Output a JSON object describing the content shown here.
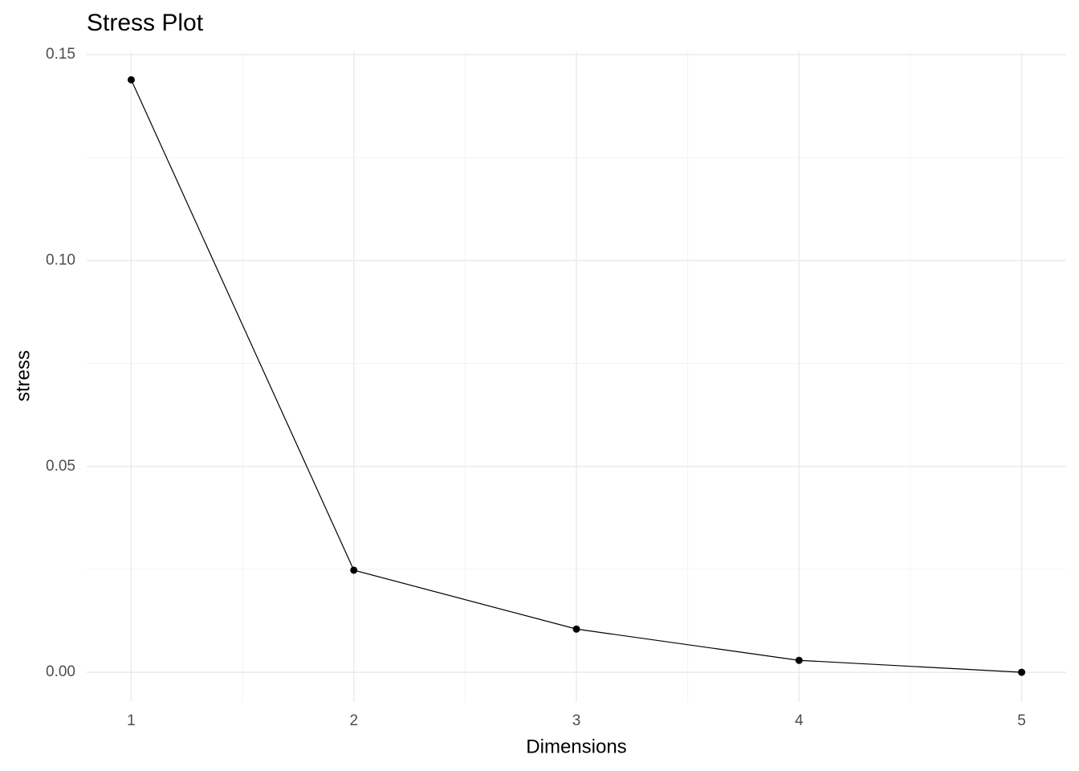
{
  "chart_data": {
    "type": "line",
    "title": "Stress Plot",
    "x_label": "Dimensions",
    "y_label": "stress",
    "x": [
      1,
      2,
      3,
      4,
      5
    ],
    "values": [
      0.1439,
      0.0248,
      0.0105,
      0.0029,
      0.0
    ],
    "color": "#000000",
    "xlim": [
      0.8,
      5.2
    ],
    "xticks": [
      1,
      2,
      3,
      4,
      5
    ],
    "xminor": [
      1.5,
      2.5,
      3.5,
      4.5
    ],
    "ylim": [
      -0.0072,
      0.1508
    ],
    "yticks": [
      {
        "value": 0,
        "label": "0.00"
      },
      {
        "value": 0.05,
        "label": "0.05"
      },
      {
        "value": 0.1,
        "label": "0.10"
      },
      {
        "value": 0.15,
        "label": "0.15"
      }
    ],
    "yminor": [
      0.025,
      0.075,
      0.125
    ],
    "grid": true
  }
}
